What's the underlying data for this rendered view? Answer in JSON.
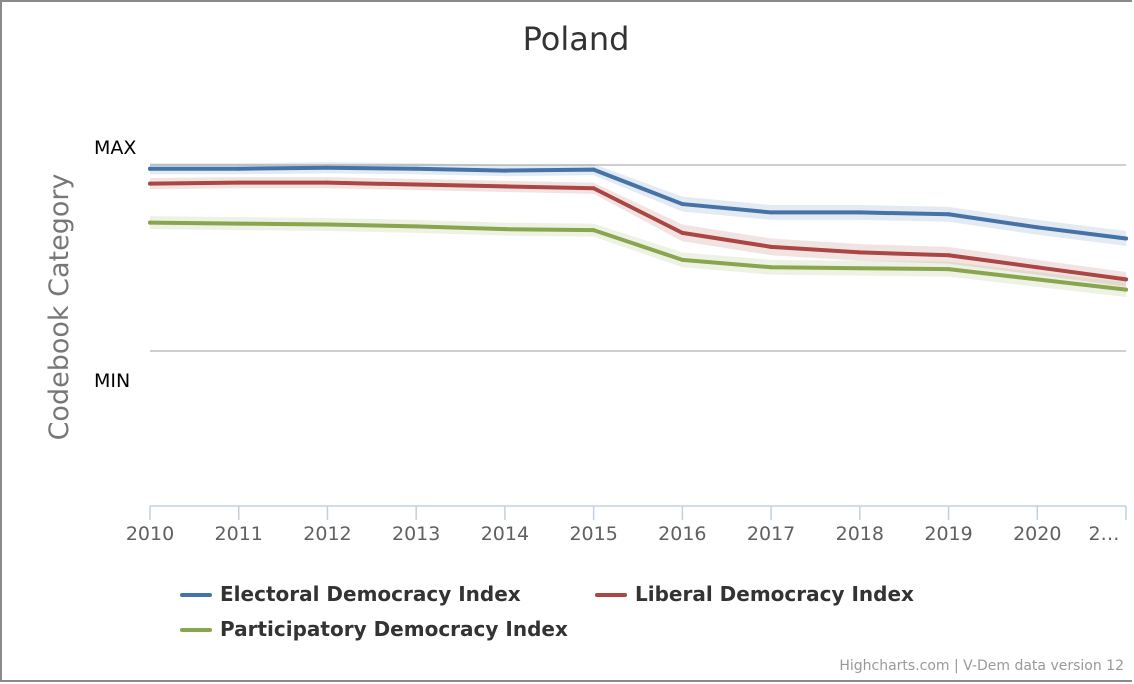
{
  "chart_data": {
    "type": "line",
    "title": "Poland",
    "ylabel": "Codebook Category",
    "y_axis_labels": {
      "max": "MAX",
      "min": "MIN"
    },
    "ylim": [
      0,
      1
    ],
    "x": [
      "2010",
      "2011",
      "2012",
      "2013",
      "2014",
      "2015",
      "2016",
      "2017",
      "2018",
      "2019",
      "2020",
      "2021"
    ],
    "x_tick_labels": [
      "2010",
      "2011",
      "2012",
      "2013",
      "2014",
      "2015",
      "2016",
      "2017",
      "2018",
      "2019",
      "2020",
      "2…"
    ],
    "grid": true,
    "legend_position": "bottom",
    "series": [
      {
        "name": "Electoral Democracy Index",
        "color": "#4572A7",
        "band_color": "#4572A7",
        "values": [
          0.98,
          0.98,
          0.985,
          0.98,
          0.97,
          0.975,
          0.79,
          0.745,
          0.745,
          0.735,
          0.665,
          0.605
        ],
        "lower": [
          0.95,
          0.95,
          0.955,
          0.95,
          0.94,
          0.945,
          0.75,
          0.705,
          0.705,
          0.695,
          0.625,
          0.565
        ],
        "upper": [
          1.01,
          1.01,
          1.015,
          1.01,
          1.0,
          1.005,
          0.83,
          0.785,
          0.785,
          0.775,
          0.705,
          0.645
        ]
      },
      {
        "name": "Liberal Democracy Index",
        "color": "#AA4643",
        "band_color": "#AA4643",
        "values": [
          0.9,
          0.905,
          0.905,
          0.895,
          0.885,
          0.875,
          0.635,
          0.56,
          0.53,
          0.515,
          0.45,
          0.385
        ],
        "lower": [
          0.87,
          0.875,
          0.875,
          0.865,
          0.855,
          0.845,
          0.59,
          0.515,
          0.485,
          0.47,
          0.41,
          0.345
        ],
        "upper": [
          0.93,
          0.935,
          0.935,
          0.925,
          0.915,
          0.905,
          0.68,
          0.605,
          0.575,
          0.56,
          0.49,
          0.425
        ]
      },
      {
        "name": "Participatory Democracy Index",
        "color": "#89A54E",
        "band_color": "#89A54E",
        "values": [
          0.69,
          0.685,
          0.68,
          0.67,
          0.655,
          0.65,
          0.49,
          0.45,
          0.445,
          0.44,
          0.385,
          0.33
        ],
        "lower": [
          0.655,
          0.65,
          0.645,
          0.635,
          0.62,
          0.615,
          0.45,
          0.41,
          0.405,
          0.4,
          0.345,
          0.29
        ],
        "upper": [
          0.725,
          0.72,
          0.715,
          0.705,
          0.69,
          0.685,
          0.53,
          0.49,
          0.485,
          0.48,
          0.425,
          0.37
        ]
      }
    ]
  },
  "credits": "Highcharts.com | V-Dem data version 12"
}
